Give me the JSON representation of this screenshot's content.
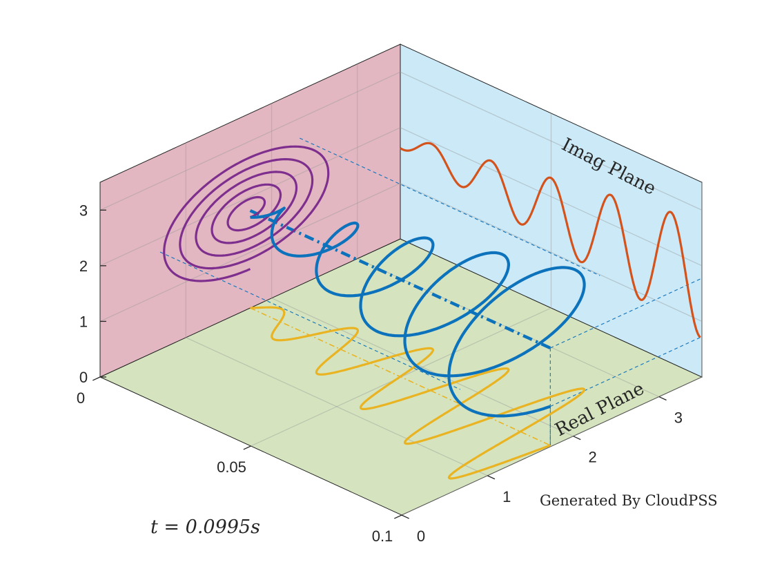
{
  "chart_data": {
    "type": "line",
    "title": "",
    "axes": {
      "time": {
        "ticks": [
          "0",
          "0.05",
          "0.1"
        ],
        "range": [
          0,
          0.1
        ]
      },
      "real": {
        "ticks": [
          "0",
          "1",
          "2",
          "3"
        ],
        "range": [
          0,
          3.5
        ]
      },
      "imag": {
        "ticks": [
          "0",
          "1",
          "2",
          "3"
        ],
        "range": [
          0,
          3.5
        ]
      }
    },
    "grid": true,
    "planes": {
      "imag_label": "Imag Plane",
      "real_label": "Real Plane",
      "colors": {
        "imag_plane": "#cbe9f7",
        "real_plane": "#d5e4bf",
        "side_plane": "#e2b7c2"
      }
    },
    "series": [
      {
        "role": "trajectory",
        "color": "#0d72bc",
        "center": [
          1.75,
          1.75
        ],
        "radius_start": 0.12,
        "radius_end": 1.05,
        "turns": 5
      },
      {
        "role": "imag-projection",
        "color": "#d4531c"
      },
      {
        "role": "real-projection",
        "color": "#e9b321"
      },
      {
        "role": "endplane-projection",
        "color": "#7e2f8e"
      }
    ],
    "annotations": {
      "time_label": "t = 0.0995s",
      "watermark": "Generated By CloudPSS"
    }
  }
}
